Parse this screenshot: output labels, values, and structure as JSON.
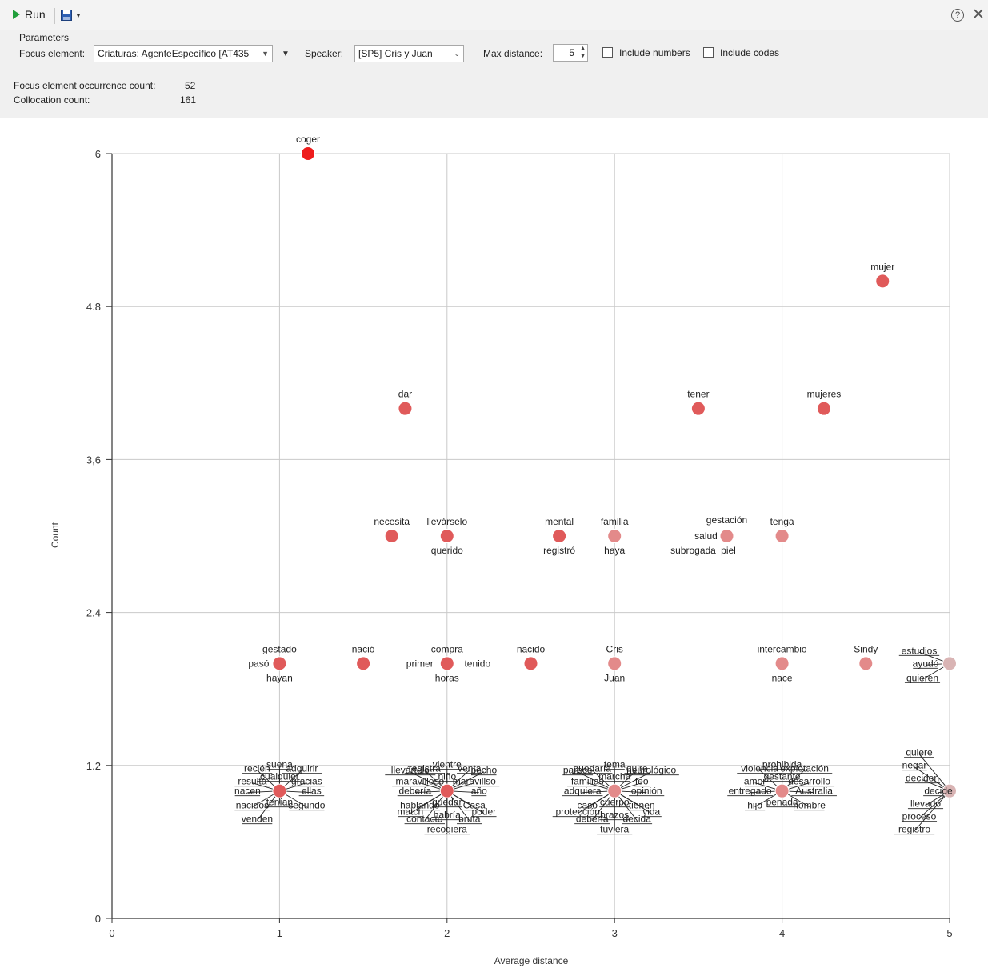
{
  "toolbar": {
    "run_label": "Run",
    "help_icon": "help-circle-icon",
    "close_icon": "close-icon",
    "save_icon": "save-disk-icon"
  },
  "parameters": {
    "group_label": "Parameters",
    "focus_label": "Focus element:",
    "focus_value": "Criaturas: AgenteEspecífico [AT435",
    "speaker_label": "Speaker:",
    "speaker_value": "[SP5] Cris y Juan",
    "max_distance_label": "Max distance:",
    "max_distance_value": "5",
    "include_numbers_label": "Include numbers",
    "include_codes_label": "Include codes"
  },
  "stats": {
    "occurrence_label": "Focus element occurrence count:",
    "occurrence_value": "52",
    "collocation_label": "Collocation count:",
    "collocation_value": "161"
  },
  "chart_data": {
    "type": "scatter",
    "xlabel": "Average distance",
    "ylabel": "Count",
    "xlim": [
      0,
      5
    ],
    "ylim": [
      0,
      6
    ],
    "xticks": [
      "0",
      "1",
      "2",
      "3",
      "4",
      "5"
    ],
    "yticks": [
      "0",
      "1.2",
      "2.4",
      "3,6",
      "4.8",
      "6"
    ],
    "grid": true,
    "point_colors": {
      "strong": "#ee1c1c",
      "mid": "#e05a5a",
      "light": "#e38a8a",
      "pale": "#d9b4b4"
    },
    "points": [
      {
        "x": 1.17,
        "y": 6,
        "c": "strong",
        "labels": [
          "coger"
        ]
      },
      {
        "x": 4.6,
        "y": 5,
        "c": "mid",
        "labels": [
          "mujer"
        ]
      },
      {
        "x": 1.75,
        "y": 4,
        "c": "mid",
        "labels": [
          "dar"
        ]
      },
      {
        "x": 3.5,
        "y": 4,
        "c": "mid",
        "labels": [
          "tener"
        ]
      },
      {
        "x": 4.25,
        "y": 4,
        "c": "mid",
        "labels": [
          "mujeres"
        ]
      },
      {
        "x": 1.67,
        "y": 3,
        "c": "mid",
        "labels": [
          "necesita"
        ]
      },
      {
        "x": 2,
        "y": 3,
        "c": "mid",
        "labels": [
          "llevárselo",
          "querido"
        ]
      },
      {
        "x": 2.67,
        "y": 3,
        "c": "mid",
        "labels": [
          "mental",
          "registró"
        ]
      },
      {
        "x": 3,
        "y": 3,
        "c": "light",
        "labels": [
          "familia",
          "haya"
        ]
      },
      {
        "x": 3.67,
        "y": 3,
        "c": "light",
        "labels": [
          "gestación",
          "salud",
          "subrogada",
          "piel"
        ]
      },
      {
        "x": 4,
        "y": 3,
        "c": "light",
        "labels": [
          "tenga"
        ]
      },
      {
        "x": 1,
        "y": 2,
        "c": "mid",
        "labels": [
          "gestado",
          "pasó",
          "hayan"
        ]
      },
      {
        "x": 1.5,
        "y": 2,
        "c": "mid",
        "labels": [
          "nació"
        ]
      },
      {
        "x": 2,
        "y": 2,
        "c": "mid",
        "labels": [
          "compra",
          "primer",
          "tenido",
          "horas"
        ]
      },
      {
        "x": 2.5,
        "y": 2,
        "c": "mid",
        "labels": [
          "nacido"
        ]
      },
      {
        "x": 3,
        "y": 2,
        "c": "light",
        "labels": [
          "Cris",
          "Juan"
        ]
      },
      {
        "x": 4,
        "y": 2,
        "c": "light",
        "labels": [
          "intercambio",
          "nace"
        ]
      },
      {
        "x": 4.5,
        "y": 2,
        "c": "light",
        "labels": [
          "Sindy"
        ]
      },
      {
        "x": 5,
        "y": 2,
        "c": "pale",
        "labels": [
          "estudios",
          "ayudó",
          "quieren"
        ]
      },
      {
        "x": 1,
        "y": 1,
        "c": "mid",
        "labels": [
          "recién",
          "suena",
          "adquirir",
          "resulta",
          "cualquier",
          "gracias",
          "nacen",
          "ellas",
          "nacidos",
          "tenían",
          "segundo",
          "venden"
        ]
      },
      {
        "x": 2,
        "y": 1,
        "c": "mid",
        "labels": [
          "registra",
          "vientre",
          "venta",
          "maravilloso",
          "niño",
          "maravillso",
          "debería",
          "año",
          "hablando",
          "quedar",
          "Casa",
          "contacto",
          "habría",
          "bruta",
          "llevártelo",
          "pecho",
          "match",
          "poder",
          "recogiera"
        ]
      },
      {
        "x": 3,
        "y": 1,
        "c": "light",
        "labels": [
          "quedaría",
          "tema",
          "quire",
          "familias",
          "marcha",
          "feo",
          "adquiera",
          "opinión",
          "caso",
          "cuerpo",
          "tienen",
          "debería",
          "brazos",
          "decida",
          "parece",
          "neurológico",
          "protección",
          "vida",
          "tuviera"
        ]
      },
      {
        "x": 4,
        "y": 1,
        "c": "light",
        "labels": [
          "violencia",
          "prohibida",
          "explotación",
          "amor",
          "gestante",
          "desarrollo",
          "entregado",
          "Australia",
          "hijo",
          "penada",
          "nombre"
        ]
      },
      {
        "x": 5,
        "y": 1,
        "c": "pale",
        "labels": [
          "quiere",
          "negar",
          "deciden",
          "decide",
          "llevado",
          "proceso",
          "registro"
        ]
      }
    ]
  }
}
